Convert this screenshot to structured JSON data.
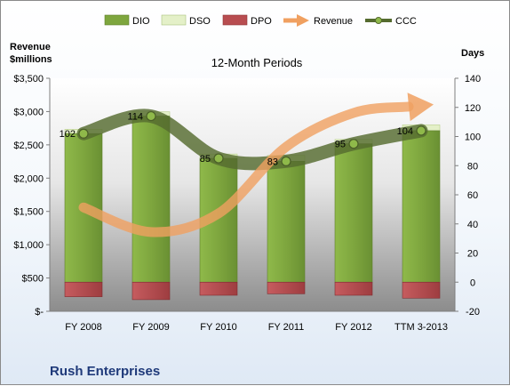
{
  "chart_data": {
    "type": "bar",
    "subtitle": "12-Month Periods",
    "company": "Rush Enterprises",
    "left_axis_title": [
      "Revenue",
      "$millions"
    ],
    "right_axis_title": "Days",
    "categories": [
      "FY 2008",
      "FY 2009",
      "FY 2010",
      "FY 2011",
      "FY 2012",
      "TTM 3-2013"
    ],
    "left_axis": {
      "min": 0,
      "max": 3500,
      "step": 500,
      "tick_labels": [
        "$-",
        "$500",
        "$1,000",
        "$1,500",
        "$2,000",
        "$2,500",
        "$3,000",
        "$3,500"
      ]
    },
    "right_axis": {
      "min": -20,
      "max": 140,
      "step": 20,
      "tick_labels": [
        "-20",
        "0",
        "20",
        "40",
        "60",
        "80",
        "100",
        "120",
        "140"
      ]
    },
    "series": [
      {
        "name": "DIO",
        "kind": "stacked-bar",
        "axis": "right",
        "color": "#7ea63e",
        "values": [
          102,
          114,
          85,
          83,
          95,
          104
        ]
      },
      {
        "name": "DSO",
        "kind": "stacked-bar",
        "axis": "right",
        "color": "#e4f0c8",
        "values": [
          3,
          3,
          3,
          4,
          3,
          4
        ]
      },
      {
        "name": "DPO",
        "kind": "negative-bar",
        "axis": "right",
        "color": "#b84d50",
        "values": [
          -10,
          -12,
          -9,
          -8,
          -9,
          -11
        ]
      },
      {
        "name": "Revenue",
        "kind": "arrow-line",
        "axis": "left",
        "color": "#f0a060",
        "values": [
          1560,
          1190,
          1470,
          2470,
          2980,
          3080
        ]
      },
      {
        "name": "CCC",
        "kind": "line",
        "axis": "right",
        "color": "#556b2f",
        "values": [
          102,
          114,
          85,
          83,
          95,
          104
        ],
        "labels": [
          "102",
          "114",
          "85",
          "83",
          "95",
          "104"
        ]
      }
    ],
    "legend_position": "top",
    "grid": false
  }
}
